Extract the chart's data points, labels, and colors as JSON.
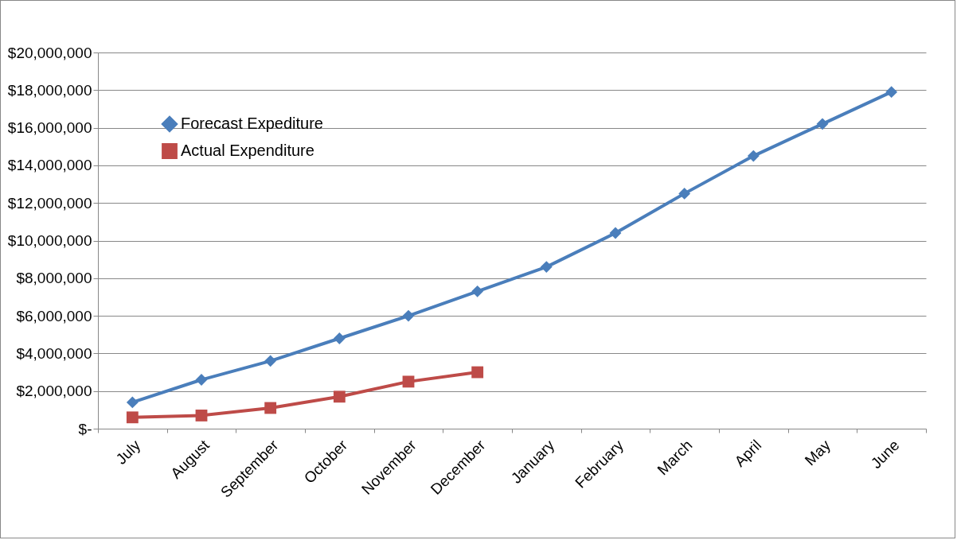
{
  "chart_data": {
    "type": "line",
    "categories": [
      "July",
      "August",
      "September",
      "October",
      "November",
      "December",
      "January",
      "February",
      "March",
      "April",
      "May",
      "June"
    ],
    "series": [
      {
        "name": "Forecast Expediture",
        "color": "#4a7ebb",
        "marker": "diamond",
        "values": [
          1400000,
          2600000,
          3600000,
          4800000,
          6000000,
          7300000,
          8600000,
          10400000,
          12500000,
          14500000,
          16200000,
          17900000
        ]
      },
      {
        "name": "Actual Expenditure",
        "color": "#be4b48",
        "marker": "square",
        "values": [
          600000,
          700000,
          1100000,
          1700000,
          2500000,
          3000000,
          null,
          null,
          null,
          null,
          null,
          null
        ]
      }
    ],
    "ylim": [
      0,
      20000000
    ],
    "yticks": [
      {
        "value": 0,
        "label": "$-"
      },
      {
        "value": 2000000,
        "label": "$2,000,000"
      },
      {
        "value": 4000000,
        "label": "$4,000,000"
      },
      {
        "value": 6000000,
        "label": "$6,000,000"
      },
      {
        "value": 8000000,
        "label": "$8,000,000"
      },
      {
        "value": 10000000,
        "label": "$10,000,000"
      },
      {
        "value": 12000000,
        "label": "$12,000,000"
      },
      {
        "value": 14000000,
        "label": "$14,000,000"
      },
      {
        "value": 16000000,
        "label": "$16,000,000"
      },
      {
        "value": 18000000,
        "label": "$18,000,000"
      },
      {
        "value": 20000000,
        "label": "$20,000,000"
      }
    ],
    "grid": "y",
    "legend": "top left"
  }
}
